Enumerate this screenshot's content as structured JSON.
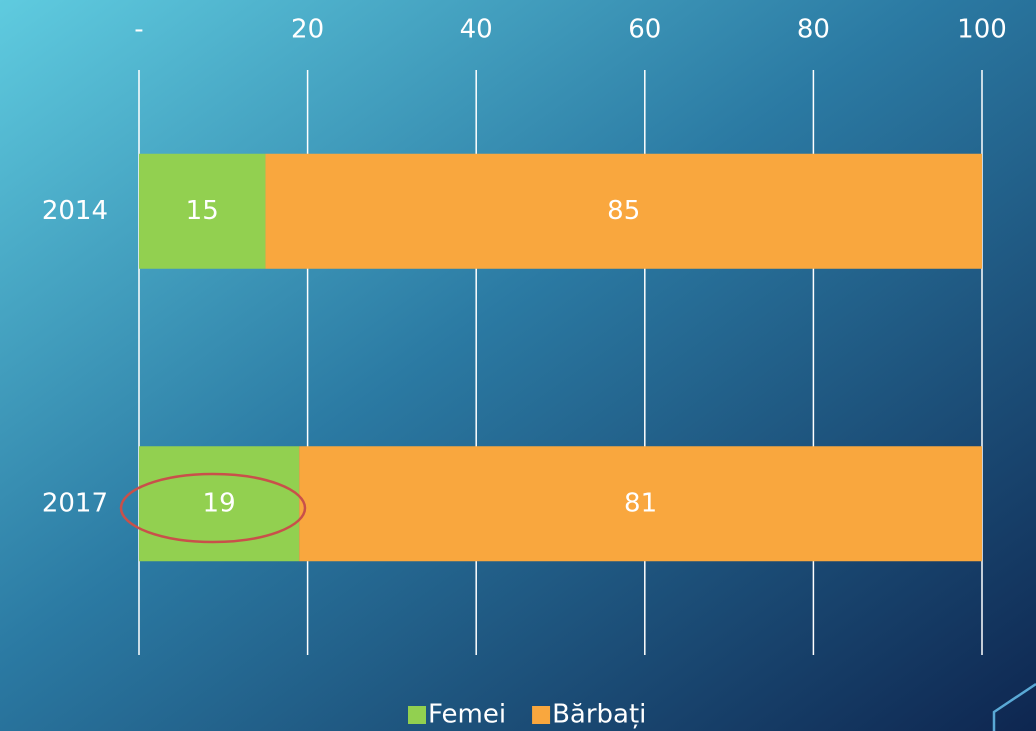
{
  "chart_data": {
    "type": "stacked_barh",
    "categories": [
      "2014",
      "2017"
    ],
    "series": [
      {
        "name": "Femei",
        "color": "#92d050",
        "values": [
          15,
          19
        ]
      },
      {
        "name": "Bărbați",
        "color": "#f9a73e",
        "values": [
          85,
          81
        ]
      }
    ],
    "xlim": [
      0,
      100
    ],
    "xticks": [
      {
        "value": 0,
        "label": "-"
      },
      20,
      40,
      60,
      80,
      100
    ],
    "grid": true,
    "legend": "bottom"
  }
}
